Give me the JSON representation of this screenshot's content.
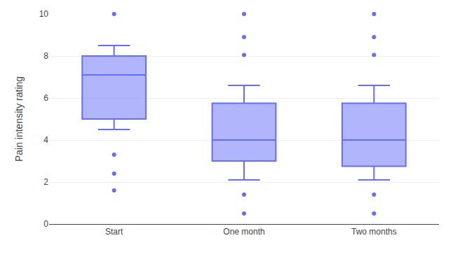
{
  "chart_data": {
    "type": "box",
    "categories": [
      "Start",
      "One month",
      "Two months"
    ],
    "boxes": [
      {
        "median": 7.1,
        "q1": 5.0,
        "q3": 8.0,
        "whislo": 4.5,
        "whishi": 8.5,
        "fliers": [
          1.6,
          2.4,
          3.3,
          10.0
        ]
      },
      {
        "median": 4.0,
        "q1": 3.0,
        "q3": 5.75,
        "whislo": 2.1,
        "whishi": 6.6,
        "fliers": [
          0.5,
          1.4,
          8.05,
          8.9,
          10.0
        ]
      },
      {
        "median": 4.0,
        "q1": 2.75,
        "q3": 5.75,
        "whislo": 2.1,
        "whishi": 6.6,
        "fliers": [
          0.5,
          1.4,
          8.05,
          8.9,
          10.0
        ]
      }
    ],
    "ylabel": "Pain intensity rating",
    "ylim": [
      0,
      10
    ],
    "yticks": [
      0,
      2,
      4,
      6,
      8,
      10
    ],
    "grid": true
  }
}
